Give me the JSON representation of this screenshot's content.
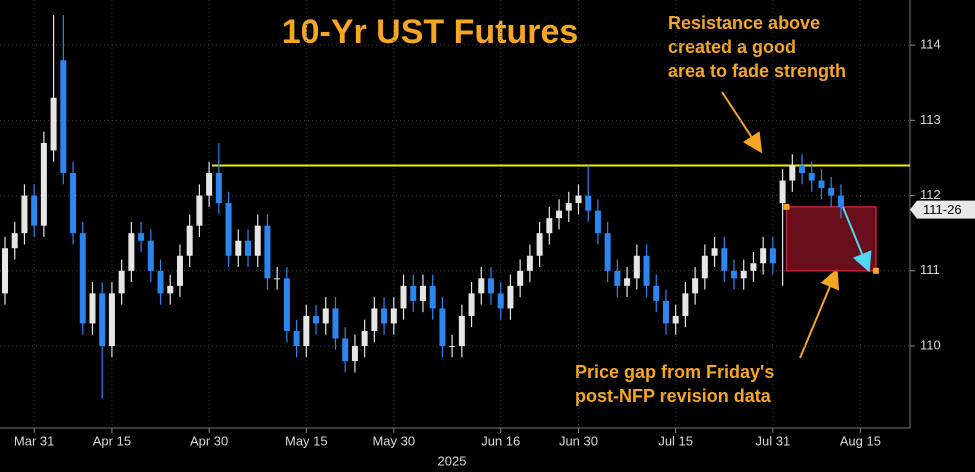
{
  "chart_data": {
    "type": "candlestick",
    "title": "10-Yr UST Futures",
    "x_axis_label": "2025",
    "categories": [
      null,
      null,
      null,
      "Mar 31",
      null,
      null,
      null,
      null,
      null,
      null,
      null,
      "Apr 15",
      null,
      null,
      null,
      null,
      null,
      null,
      null,
      null,
      null,
      "Apr 30",
      null,
      null,
      null,
      null,
      null,
      null,
      null,
      null,
      null,
      "May 15",
      null,
      null,
      null,
      null,
      null,
      null,
      null,
      null,
      "May 30",
      null,
      null,
      null,
      null,
      null,
      null,
      null,
      null,
      null,
      null,
      "Jun 16",
      null,
      null,
      null,
      null,
      null,
      null,
      null,
      "Jun 30",
      null,
      null,
      null,
      null,
      null,
      null,
      null,
      null,
      null,
      "Jul 15",
      null,
      null,
      null,
      null,
      null,
      null,
      null,
      null,
      null,
      "Jul 31",
      null,
      null,
      null,
      null,
      null,
      null,
      null,
      null,
      "Aug 15",
      null,
      null,
      null,
      null
    ],
    "open": [
      110.7,
      111.3,
      111.5,
      112.0,
      111.6,
      112.6,
      113.8,
      112.3,
      111.5,
      110.3,
      110.7,
      110.0,
      110.7,
      111.0,
      111.5,
      111.4,
      111.0,
      110.7,
      110.8,
      111.2,
      111.6,
      112.0,
      112.3,
      111.9,
      111.2,
      111.4,
      111.2,
      111.6,
      110.9,
      110.9,
      110.2,
      110.0,
      110.4,
      110.3,
      110.5,
      110.1,
      109.8,
      110.0,
      110.2,
      110.5,
      110.3,
      110.5,
      110.8,
      110.6,
      110.8,
      110.5,
      110.0,
      110.0,
      110.4,
      110.7,
      110.9,
      110.7,
      110.5,
      110.8,
      111.0,
      111.2,
      111.5,
      111.7,
      111.8,
      111.9,
      112.0,
      111.8,
      111.5,
      111.0,
      110.8,
      110.9,
      111.2,
      110.8,
      110.6,
      110.3,
      110.4,
      110.7,
      110.9,
      111.2,
      111.3,
      111.0,
      110.9,
      111.0,
      111.1,
      111.3,
      111.9,
      112.2,
      112.4,
      112.3,
      112.2,
      112.1,
      112.0,
      null,
      null,
      null,
      null,
      null,
      null
    ],
    "high": [
      111.45,
      111.65,
      112.15,
      112.15,
      112.85,
      114.4,
      114.4,
      112.45,
      111.65,
      110.85,
      110.85,
      110.85,
      111.15,
      111.65,
      111.65,
      111.55,
      111.15,
      110.95,
      111.35,
      111.75,
      112.15,
      112.45,
      112.7,
      112.05,
      111.55,
      111.55,
      111.75,
      111.75,
      111.05,
      111.05,
      110.35,
      110.55,
      110.55,
      110.65,
      110.65,
      110.25,
      110.15,
      110.35,
      110.65,
      110.65,
      110.65,
      110.95,
      110.95,
      110.95,
      110.95,
      110.65,
      110.15,
      110.55,
      110.85,
      111.05,
      111.05,
      110.85,
      110.95,
      111.15,
      111.35,
      111.65,
      111.85,
      111.95,
      112.05,
      112.15,
      112.4,
      111.95,
      111.65,
      111.15,
      111.05,
      111.35,
      111.35,
      110.95,
      110.75,
      110.55,
      110.85,
      111.05,
      111.35,
      111.45,
      111.45,
      111.15,
      111.15,
      111.25,
      111.45,
      111.45,
      112.35,
      112.55,
      112.55,
      112.45,
      112.35,
      112.25,
      112.15,
      null,
      null,
      null,
      null,
      null,
      null
    ],
    "low": [
      110.55,
      111.15,
      111.35,
      111.45,
      111.45,
      112.45,
      112.15,
      111.35,
      110.15,
      110.15,
      109.3,
      109.85,
      110.55,
      110.85,
      111.25,
      110.85,
      110.55,
      110.55,
      110.65,
      111.05,
      111.45,
      111.85,
      111.75,
      111.05,
      111.05,
      111.05,
      111.05,
      110.75,
      110.75,
      110.05,
      109.85,
      109.85,
      110.15,
      110.15,
      109.95,
      109.65,
      109.65,
      109.85,
      110.05,
      110.15,
      110.15,
      110.35,
      110.45,
      110.45,
      110.35,
      109.85,
      109.85,
      109.85,
      110.25,
      110.55,
      110.55,
      110.35,
      110.35,
      110.65,
      110.85,
      111.05,
      111.35,
      111.55,
      111.65,
      111.75,
      111.65,
      111.35,
      110.85,
      110.65,
      110.65,
      110.75,
      110.65,
      110.45,
      110.15,
      110.15,
      110.25,
      110.55,
      110.75,
      111.05,
      110.85,
      110.75,
      110.75,
      110.85,
      110.95,
      110.95,
      110.8,
      112.05,
      112.15,
      112.05,
      111.95,
      111.85,
      111.7,
      null,
      null,
      null,
      null,
      null,
      null
    ],
    "close": [
      111.3,
      111.5,
      112.0,
      111.6,
      112.7,
      113.3,
      112.3,
      111.5,
      110.3,
      110.7,
      110.0,
      110.7,
      111.0,
      111.5,
      111.4,
      111.0,
      110.7,
      110.8,
      111.2,
      111.6,
      112.0,
      112.3,
      111.9,
      111.2,
      111.4,
      111.2,
      111.6,
      110.9,
      110.9,
      110.2,
      110.0,
      110.4,
      110.3,
      110.5,
      110.1,
      109.8,
      110.0,
      110.2,
      110.5,
      110.3,
      110.5,
      110.8,
      110.6,
      110.8,
      110.5,
      110.0,
      110.0,
      110.4,
      110.7,
      110.9,
      110.7,
      110.5,
      110.8,
      111.0,
      111.2,
      111.5,
      111.7,
      111.8,
      111.9,
      112.0,
      111.8,
      111.5,
      111.0,
      110.8,
      110.9,
      111.2,
      110.8,
      110.6,
      110.3,
      110.4,
      110.7,
      110.9,
      111.2,
      111.3,
      111.0,
      110.9,
      111.0,
      111.1,
      111.3,
      111.1,
      112.2,
      112.4,
      112.3,
      112.2,
      112.1,
      112.0,
      111.85,
      null,
      null,
      null,
      null,
      null,
      null
    ],
    "up_color": "#e6e6e6",
    "down_color": "#2b86f0",
    "ylim": [
      108.95,
      114.6
    ],
    "yticks": [
      110,
      111,
      112,
      113,
      114
    ],
    "grid": true,
    "resistance_level": 112.4,
    "gap": {
      "low": 111.0,
      "high": 111.85
    },
    "last_price": {
      "value": 111.8125,
      "label": "111-26"
    },
    "annotations": [
      {
        "lines": [
          "Resistance above",
          "created a good",
          "area to fade strength"
        ]
      },
      {
        "lines": [
          "Price gap from Friday's",
          "post-NFP revision data"
        ]
      }
    ]
  }
}
